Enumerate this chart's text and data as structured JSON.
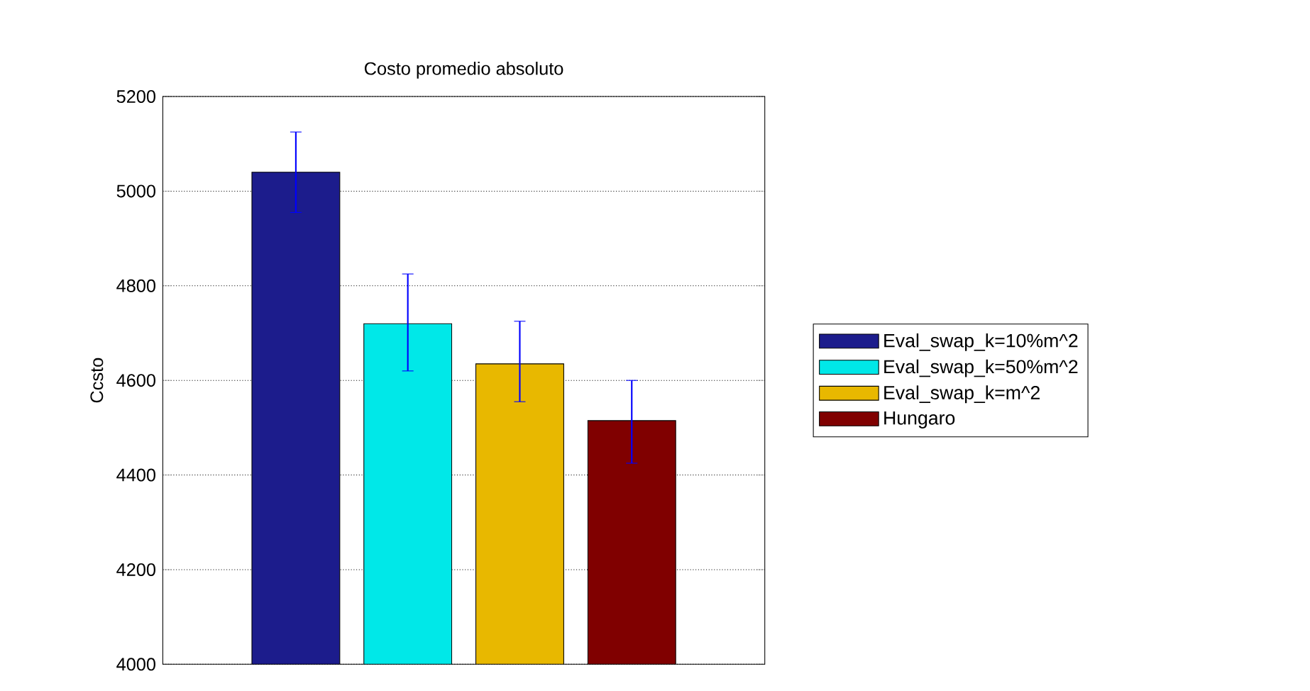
{
  "chart_data": {
    "type": "bar",
    "title": "Costo promedio absoluto",
    "ylabel": "Ccsto",
    "categories": [
      null
    ],
    "series": [
      {
        "name": "Eval_swap_k=10%m^2",
        "color": "#1c1c8c",
        "values": [
          5040
        ],
        "errors": [
          [
            4955,
            5125
          ]
        ]
      },
      {
        "name": "Eval_swap_k=50%m^2",
        "color": "#00e8e8",
        "values": [
          4720
        ],
        "errors": [
          [
            4620,
            4825
          ]
        ]
      },
      {
        "name": "Eval_swap_k=m^2",
        "color": "#e8b800",
        "values": [
          4635
        ],
        "errors": [
          [
            4555,
            4725
          ]
        ]
      },
      {
        "name": "Hungaro",
        "color": "#800000",
        "values": [
          4515
        ],
        "errors": [
          [
            4425,
            4600
          ]
        ]
      }
    ],
    "ylim": [
      4000,
      5200
    ],
    "yticks": [
      4000,
      4200,
      4400,
      4600,
      4800,
      5000,
      5200
    ],
    "grid": "y",
    "legend": "right"
  }
}
